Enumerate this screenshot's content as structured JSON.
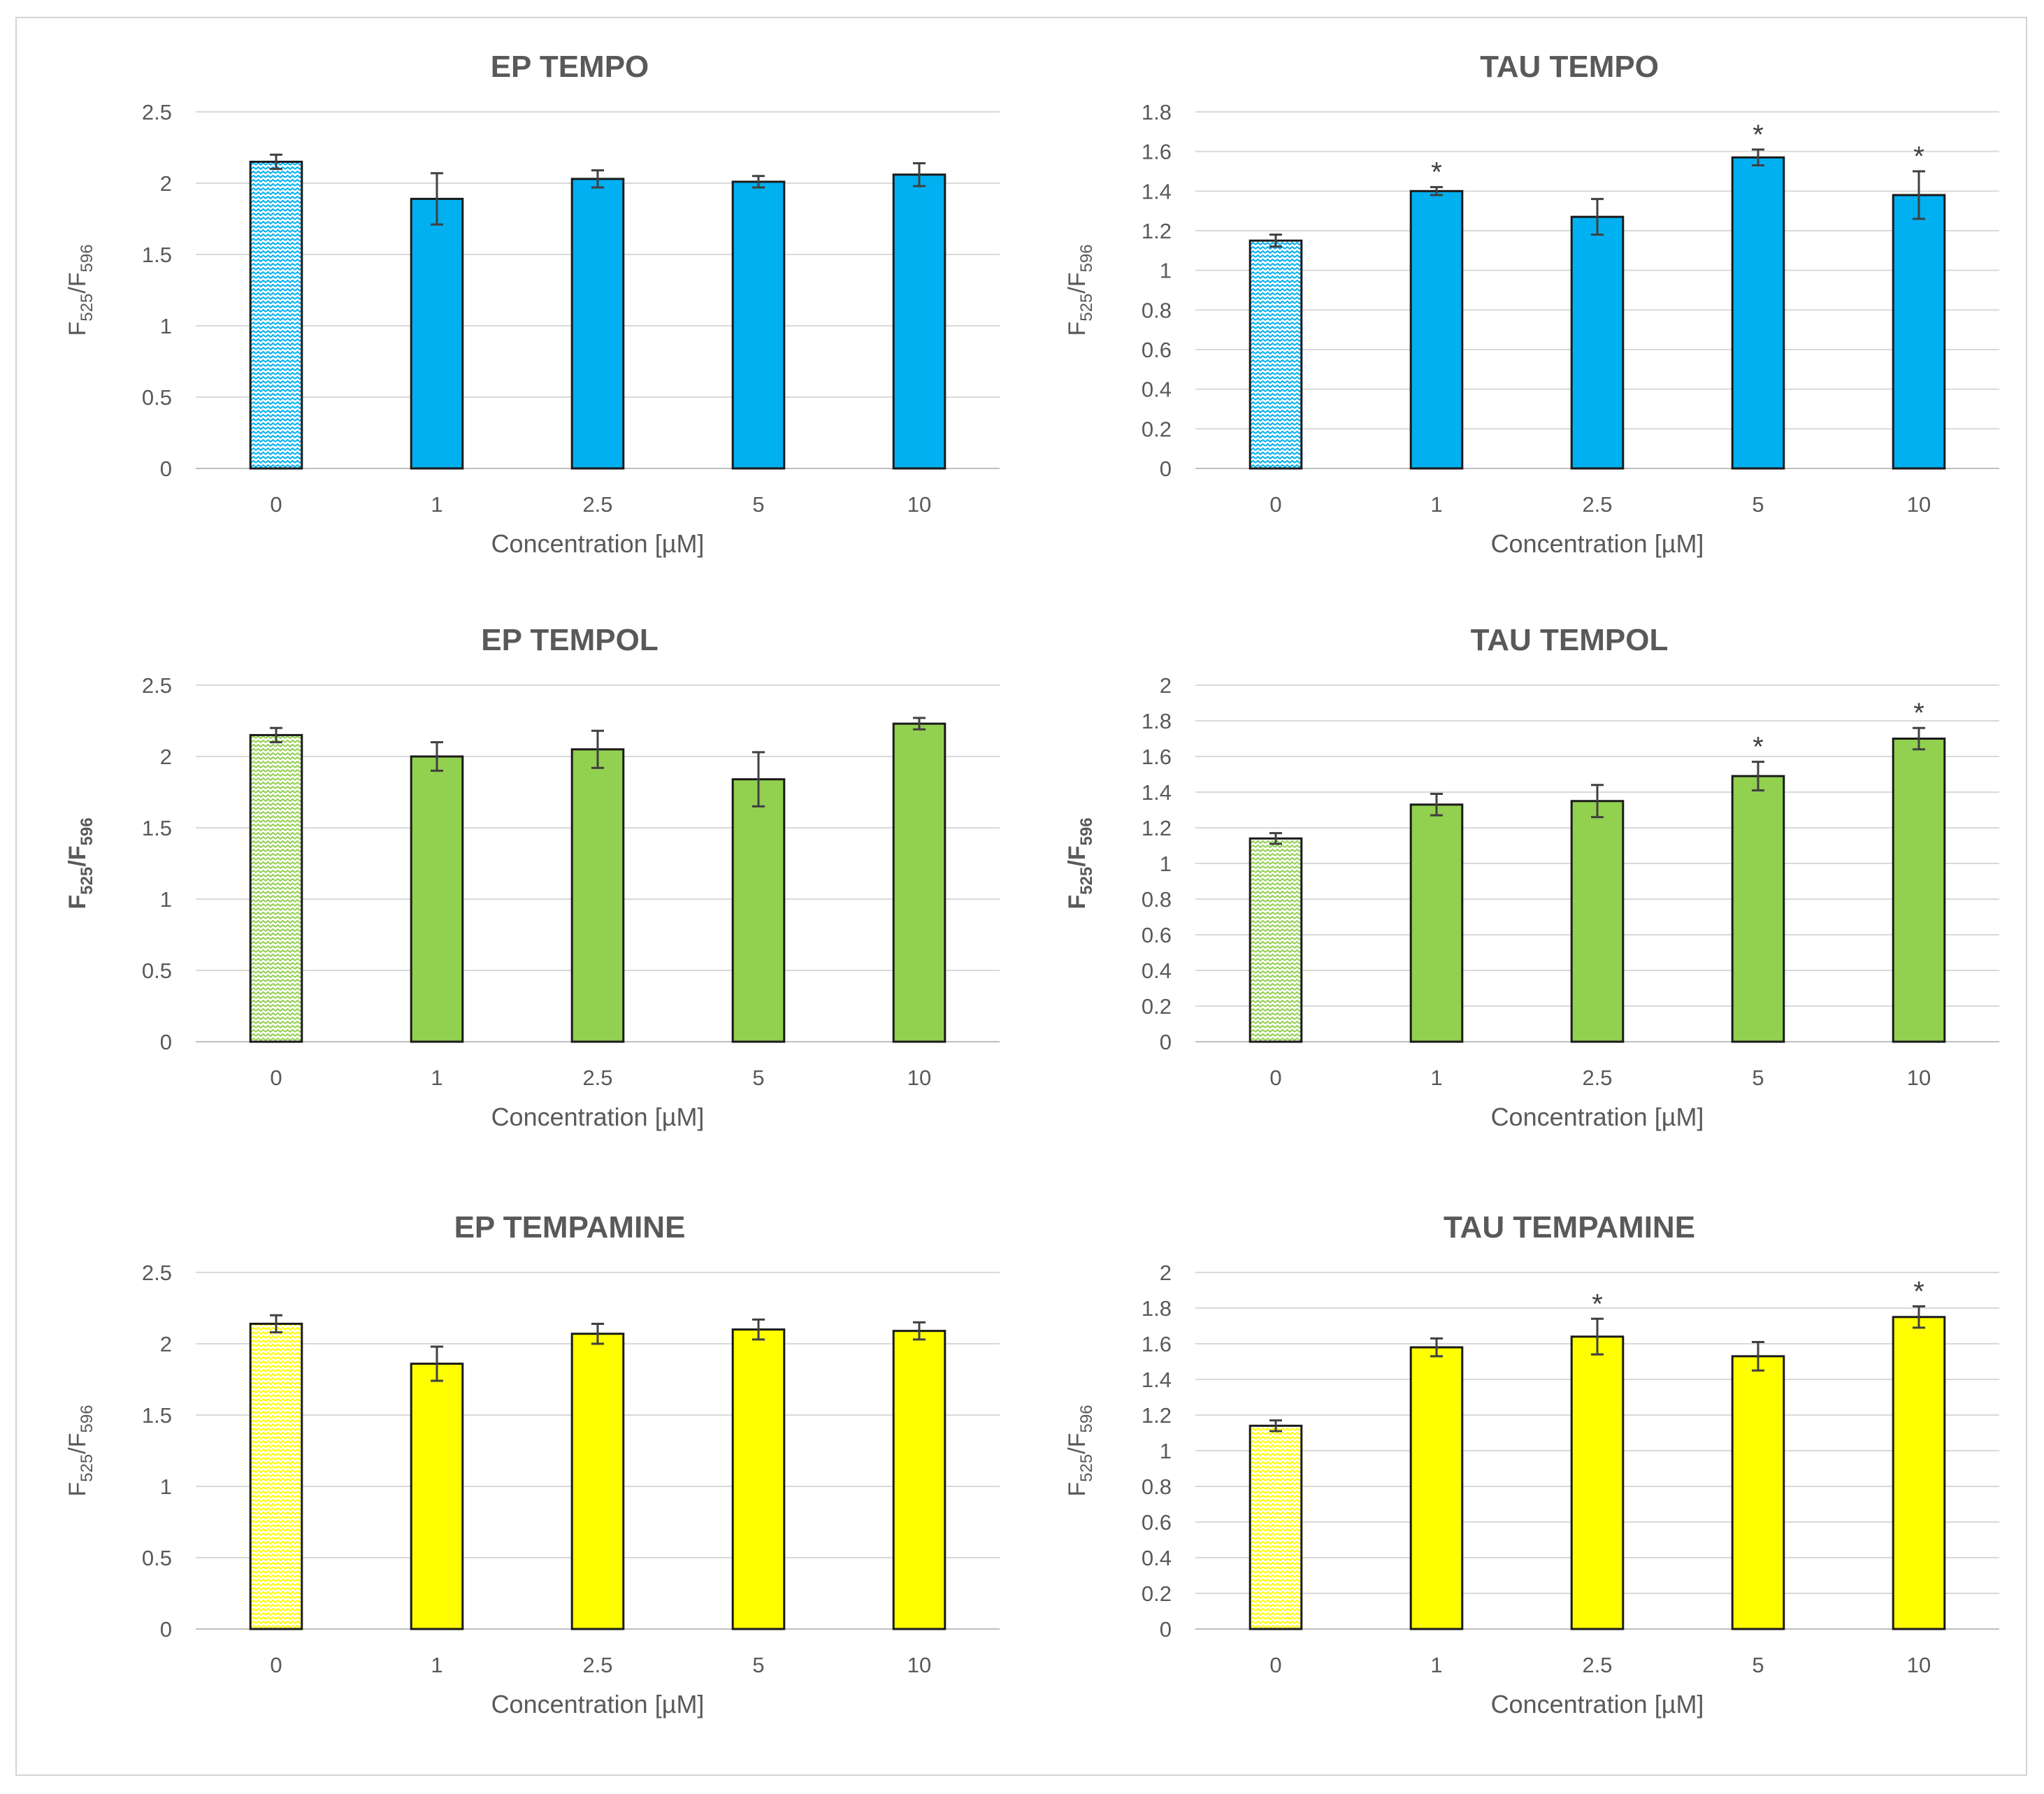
{
  "chart_data": [
    {
      "type": "bar",
      "title": "EP TEMPO",
      "xlabel": "Concentration [µM]",
      "ylabel": {
        "main": "F",
        "sub1": "525",
        "sep": "/F",
        "sub2": "596"
      },
      "categories": [
        "0",
        "1",
        "2.5",
        "5",
        "10"
      ],
      "values": [
        2.15,
        1.89,
        2.03,
        2.01,
        2.06
      ],
      "errors": [
        0.05,
        0.18,
        0.06,
        0.04,
        0.08
      ],
      "significant": [
        false,
        false,
        false,
        false,
        false
      ],
      "ylim": [
        0,
        2.5
      ],
      "yticks": [
        0,
        0.5,
        1,
        1.5,
        2,
        2.5
      ],
      "ytick_labels": [
        "0",
        "0.5",
        "1",
        "1.5",
        "2",
        "2.5"
      ],
      "color": "#00b0f0",
      "control_pattern": "zigzag",
      "grid": true
    },
    {
      "type": "bar",
      "title": "TAU TEMPO",
      "xlabel": "Concentration [µM]",
      "ylabel": {
        "main": "F",
        "sub1": "525",
        "sep": "/F",
        "sub2": "596"
      },
      "categories": [
        "0",
        "1",
        "2.5",
        "5",
        "10"
      ],
      "values": [
        1.15,
        1.4,
        1.27,
        1.57,
        1.38
      ],
      "errors": [
        0.03,
        0.02,
        0.09,
        0.04,
        0.12
      ],
      "significant": [
        false,
        true,
        false,
        true,
        true
      ],
      "ylim": [
        0,
        1.8
      ],
      "yticks": [
        0,
        0.2,
        0.4,
        0.6,
        0.8,
        1,
        1.2,
        1.4,
        1.6,
        1.8
      ],
      "ytick_labels": [
        "0",
        "0.2",
        "0.4",
        "0.6",
        "0.8",
        "1",
        "1.2",
        "1.4",
        "1.6",
        "1.8"
      ],
      "color": "#00b0f0",
      "control_pattern": "zigzag",
      "grid": true
    },
    {
      "type": "bar",
      "title": "EP TEMPOL",
      "xlabel": "Concentration [µM]",
      "ylabel": {
        "main": "F",
        "sub1": "525",
        "sep": "/F",
        "sub2": "596",
        "bold": true
      },
      "categories": [
        "0",
        "1",
        "2.5",
        "5",
        "10"
      ],
      "values": [
        2.15,
        2.0,
        2.05,
        1.84,
        2.23
      ],
      "errors": [
        0.05,
        0.1,
        0.13,
        0.19,
        0.04
      ],
      "significant": [
        false,
        false,
        false,
        false,
        false
      ],
      "ylim": [
        0,
        2.5
      ],
      "yticks": [
        0,
        0.5,
        1,
        1.5,
        2,
        2.5
      ],
      "ytick_labels": [
        "0",
        "0.5",
        "1",
        "1.5",
        "2",
        "2.5"
      ],
      "color": "#92d050",
      "control_pattern": "zigzag",
      "grid": true
    },
    {
      "type": "bar",
      "title": "TAU TEMPOL",
      "xlabel": "Concentration [µM]",
      "ylabel": {
        "main": "F",
        "sub1": "525",
        "sep": "/F",
        "sub2": "596",
        "bold": true
      },
      "categories": [
        "0",
        "1",
        "2.5",
        "5",
        "10"
      ],
      "values": [
        1.14,
        1.33,
        1.35,
        1.49,
        1.7
      ],
      "errors": [
        0.03,
        0.06,
        0.09,
        0.08,
        0.06
      ],
      "significant": [
        false,
        false,
        false,
        true,
        true
      ],
      "ylim": [
        0,
        2
      ],
      "yticks": [
        0,
        0.2,
        0.4,
        0.6,
        0.8,
        1,
        1.2,
        1.4,
        1.6,
        1.8,
        2
      ],
      "ytick_labels": [
        "0",
        "0.2",
        "0.4",
        "0.6",
        "0.8",
        "1",
        "1.2",
        "1.4",
        "1.6",
        "1.8",
        "2"
      ],
      "color": "#92d050",
      "control_pattern": "zigzag",
      "xlabel_dark": true,
      "grid": true
    },
    {
      "type": "bar",
      "title": "EP TEMPAMINE",
      "xlabel": "Concentration [µM]",
      "ylabel": {
        "main": "F",
        "sub1": "525",
        "sep": "/F",
        "sub2": "596"
      },
      "categories": [
        "0",
        "1",
        "2.5",
        "5",
        "10"
      ],
      "values": [
        2.14,
        1.86,
        2.07,
        2.1,
        2.09
      ],
      "errors": [
        0.06,
        0.12,
        0.07,
        0.07,
        0.06
      ],
      "significant": [
        false,
        false,
        false,
        false,
        false
      ],
      "ylim": [
        0,
        2.5
      ],
      "yticks": [
        0,
        0.5,
        1,
        1.5,
        2,
        2.5
      ],
      "ytick_labels": [
        "0",
        "0.5",
        "1",
        "1.5",
        "2",
        "2.5"
      ],
      "color": "#ffff00",
      "control_pattern": "zigzag",
      "grid": true
    },
    {
      "type": "bar",
      "title": "TAU TEMPAMINE",
      "xlabel": "Concentration [µM]",
      "ylabel": {
        "main": "F",
        "sub1": "525",
        "sep": "/F",
        "sub2": "596"
      },
      "categories": [
        "0",
        "1",
        "2.5",
        "5",
        "10"
      ],
      "values": [
        1.14,
        1.58,
        1.64,
        1.53,
        1.75
      ],
      "errors": [
        0.03,
        0.05,
        0.1,
        0.08,
        0.06
      ],
      "significant": [
        false,
        false,
        true,
        false,
        true
      ],
      "ylim": [
        0,
        2
      ],
      "yticks": [
        0,
        0.2,
        0.4,
        0.6,
        0.8,
        1,
        1.2,
        1.4,
        1.6,
        1.8,
        2
      ],
      "ytick_labels": [
        "0",
        "0.2",
        "0.4",
        "0.6",
        "0.8",
        "1",
        "1.2",
        "1.4",
        "1.6",
        "1.8",
        "2"
      ],
      "color": "#ffff00",
      "control_pattern": "zigzag",
      "grid": true
    }
  ],
  "significance_marker": "*"
}
